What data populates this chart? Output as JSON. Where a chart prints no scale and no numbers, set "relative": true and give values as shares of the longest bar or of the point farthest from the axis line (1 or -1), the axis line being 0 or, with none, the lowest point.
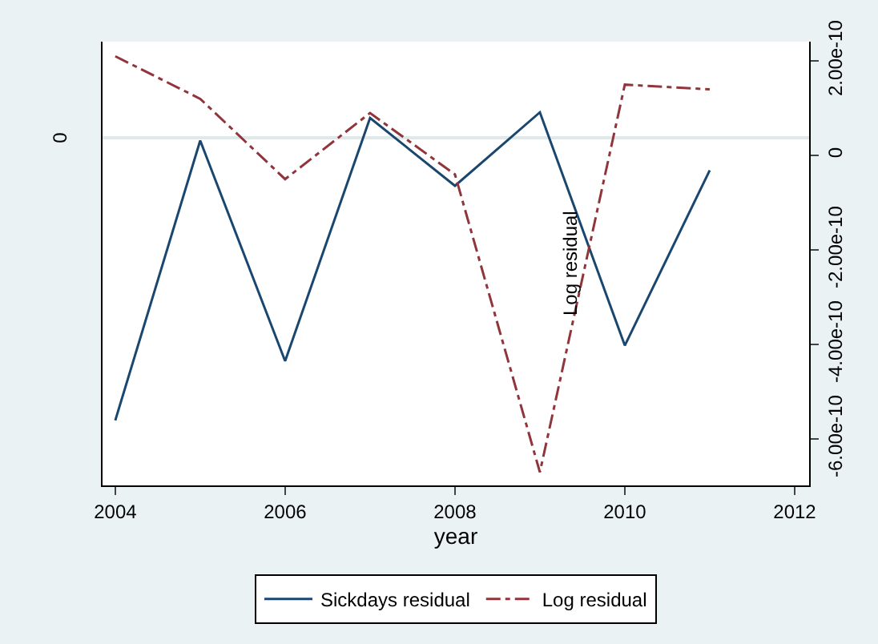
{
  "chart_data": {
    "type": "line",
    "x": [
      2004,
      2005,
      2006,
      2007,
      2008,
      2009,
      2010,
      2011
    ],
    "xlabel": "year",
    "y2label": "Log residual",
    "relative": true,
    "series": [
      {
        "name": "Sickdays residual",
        "color": "#1a476f",
        "line_style": "solid",
        "values": [
          -1,
          -0.01,
          -0.79,
          0.07,
          -0.17,
          0.09,
          -0.735,
          -0.115
        ]
      },
      {
        "name": "Log residual",
        "color": "#90353b",
        "line_style": "dashed",
        "axis": "y2",
        "values": [
          2.1e-10,
          1.2e-10,
          -5e-11,
          9e-11,
          -4e-11,
          -6.7e-10,
          1.5e-10,
          1.4e-10
        ]
      }
    ],
    "xlim": [
      2003.85,
      2012.17
    ],
    "xticks": [
      2004,
      2006,
      2008,
      2010,
      2012
    ],
    "annotations": [
      "0"
    ],
    "y2lim": [
      -6.98e-10,
      2.41e-10
    ],
    "y2ticks": [
      {
        "value": 2e-10,
        "label": "2.00e-10"
      },
      0,
      {
        "value": -2e-10,
        "label": "-2.00e-10"
      },
      {
        "value": -4e-10,
        "label": "-4.00e-10"
      },
      {
        "value": -6e-10,
        "label": "-6.00e-10"
      }
    ],
    "legend": "bottom"
  }
}
